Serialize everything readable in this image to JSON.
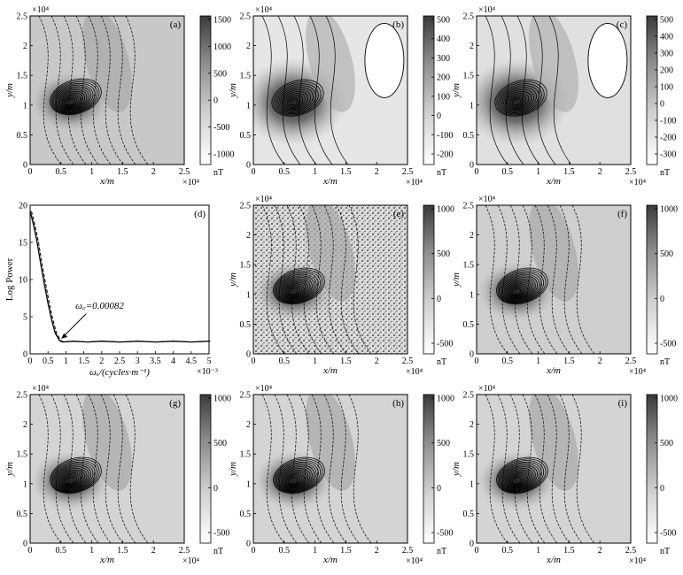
{
  "panels": [
    {
      "id": "a",
      "label": "(a)",
      "colorbar": {
        "ticks": [
          "1500",
          "1000",
          "500",
          "0",
          "-500",
          "-1000"
        ],
        "unit": "nT"
      }
    },
    {
      "id": "b",
      "label": "(b)",
      "colorbar": {
        "ticks": [
          "500",
          "400",
          "300",
          "200",
          "100",
          "0",
          "-100",
          "-200"
        ],
        "unit": "nT"
      }
    },
    {
      "id": "c",
      "label": "(c)",
      "colorbar": {
        "ticks": [
          "500",
          "400",
          "300",
          "200",
          "100",
          "0",
          "-100",
          "-200",
          "-300"
        ],
        "unit": "nT"
      }
    },
    {
      "id": "e",
      "label": "(e)",
      "colorbar": {
        "ticks": [
          "1000",
          "500",
          "0",
          "-500"
        ],
        "unit": "nT"
      }
    },
    {
      "id": "f",
      "label": "(f)",
      "colorbar": {
        "ticks": [
          "1000",
          "500",
          "0",
          "-500"
        ],
        "unit": "nT"
      }
    },
    {
      "id": "g",
      "label": "(g)",
      "colorbar": {
        "ticks": [
          "1000",
          "500",
          "0",
          "-500"
        ],
        "unit": "nT"
      }
    },
    {
      "id": "h",
      "label": "(h)",
      "colorbar": {
        "ticks": [
          "1000",
          "500",
          "0",
          "-500"
        ],
        "unit": "nT"
      }
    },
    {
      "id": "i",
      "label": "(i)",
      "colorbar": {
        "ticks": [
          "1000",
          "500",
          "0",
          "-500"
        ],
        "unit": "nT"
      }
    }
  ],
  "map_axes": {
    "xticks": [
      "0",
      "0.5",
      "1",
      "1.5",
      "2",
      "2.5"
    ],
    "yticks": [
      "0",
      "0.5",
      "1",
      "1.5",
      "2",
      "2.5"
    ],
    "xlabel": "x/m",
    "ylabel": "y/m",
    "exponent": "×10⁴"
  },
  "spectrum": {
    "label": "(d)",
    "ylabel": "Log Power",
    "xlabel": "ωₓ/(cycles·m⁻¹)",
    "xexponent": "×10⁻³",
    "xticks": [
      "0",
      "0.5",
      "1",
      "1.5",
      "2",
      "2.5",
      "3",
      "3.5",
      "4",
      "4.5",
      "5"
    ],
    "yticks": [
      "0",
      "5",
      "10",
      "15",
      "20"
    ],
    "annotation": "ω꜀=0.00082"
  },
  "chart_data": [
    {
      "type": "line",
      "title": "",
      "xlabel": "ωx/(cycles·m⁻¹) ×10⁻³",
      "ylabel": "Log Power",
      "xlim": [
        0,
        5
      ],
      "ylim": [
        0,
        20
      ],
      "series": [
        {
          "values_x": [
            0,
            0.1,
            0.2,
            0.3,
            0.4,
            0.5,
            0.6,
            0.7,
            0.82,
            0.9,
            1.2,
            1.6,
            2.0,
            2.5,
            3.0,
            3.5,
            4.0,
            4.5,
            5.0
          ],
          "values_y": [
            19.2,
            17.3,
            14.9,
            12.0,
            9.3,
            6.8,
            4.6,
            2.8,
            1.8,
            1.6,
            1.7,
            1.6,
            1.7,
            1.6,
            1.7,
            1.6,
            1.7,
            1.6,
            1.7
          ]
        }
      ],
      "annotations": [
        {
          "text": "ωc=0.00082",
          "x": 0.82,
          "y": 1.8
        }
      ]
    }
  ]
}
